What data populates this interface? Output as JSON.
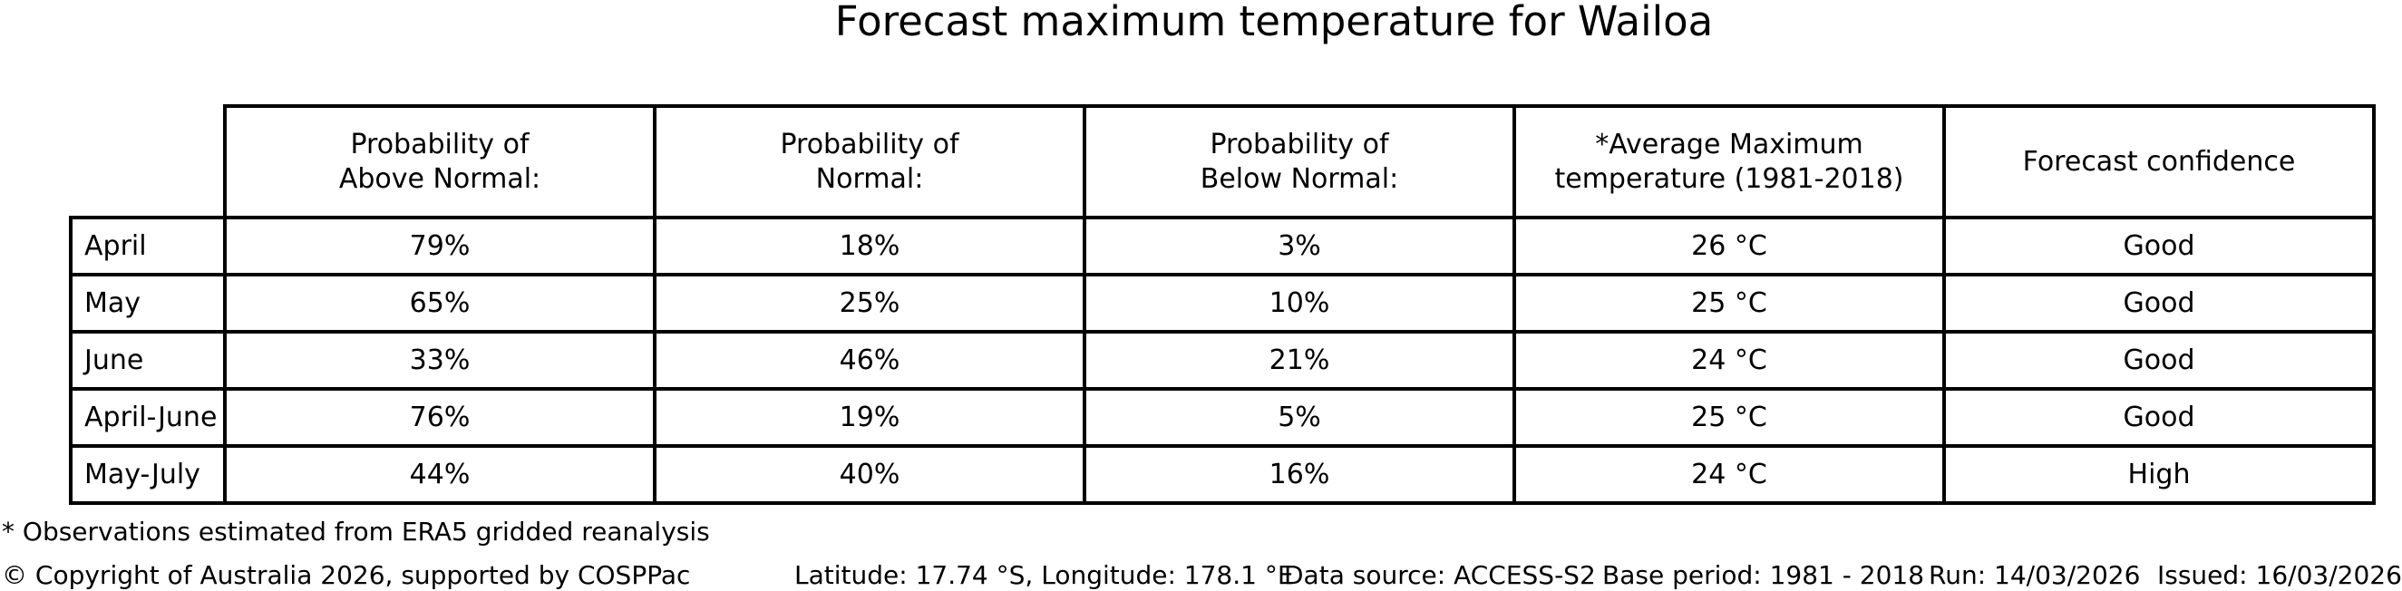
{
  "title": "Forecast maximum temperature for Wailoa",
  "table": {
    "columns": [
      "Probability of\nAbove Normal:",
      "Probability of\nNormal:",
      "Probability of\nBelow Normal:",
      "*Average Maximum\ntemperature (1981-2018)",
      "Forecast confidence"
    ],
    "rows": [
      {
        "label": "April",
        "cells": [
          "79%",
          "18%",
          "3%",
          "26 °C",
          "Good"
        ]
      },
      {
        "label": "May",
        "cells": [
          "65%",
          "25%",
          "10%",
          "25 °C",
          "Good"
        ]
      },
      {
        "label": "June",
        "cells": [
          "33%",
          "46%",
          "21%",
          "24 °C",
          "Good"
        ]
      },
      {
        "label": "April-June",
        "cells": [
          "76%",
          "19%",
          "5%",
          "25 °C",
          "Good"
        ]
      },
      {
        "label": "May-July",
        "cells": [
          "44%",
          "40%",
          "16%",
          "24 °C",
          "High"
        ]
      }
    ]
  },
  "footnote": "* Observations estimated from ERA5 gridded reanalysis",
  "footer": {
    "copyright": "© Copyright of Australia 2026, supported by COSPPac",
    "location": "Latitude: 17.74 °S, Longitude: 178.1 °E",
    "data_source": "Data source: ACCESS-S2",
    "base_period": "Base period: 1981 - 2018",
    "run": "Run: 14/03/2026",
    "issued": "Issued: 16/03/2026"
  },
  "colors": {
    "background": "#ffffff",
    "text": "#000000",
    "border": "#000000"
  },
  "chart_data": {
    "type": "table",
    "title": "Forecast maximum temperature for Wailoa",
    "columns": [
      "Probability of Above Normal:",
      "Probability of Normal:",
      "Probability of Below Normal:",
      "*Average Maximum temperature (1981-2018)",
      "Forecast confidence"
    ],
    "periods": [
      "April",
      "May",
      "June",
      "April-June",
      "May-July"
    ],
    "probability_above_normal_pct": [
      79,
      65,
      33,
      76,
      44
    ],
    "probability_normal_pct": [
      18,
      25,
      46,
      19,
      40
    ],
    "probability_below_normal_pct": [
      3,
      10,
      21,
      5,
      16
    ],
    "average_max_temp_c": [
      26,
      25,
      24,
      25,
      24
    ],
    "forecast_confidence": [
      "Good",
      "Good",
      "Good",
      "Good",
      "High"
    ]
  }
}
